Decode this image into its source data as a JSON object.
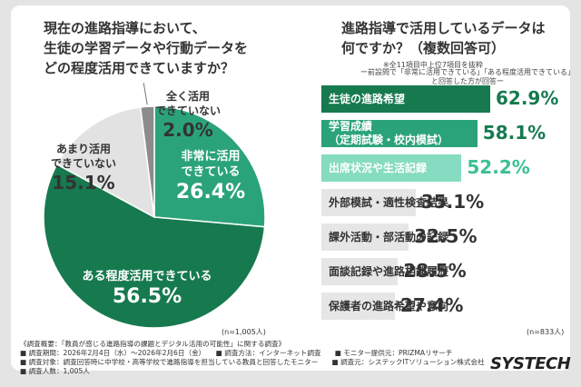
{
  "left": {
    "question_lines": [
      "現在の進路指導において、",
      "生徒の学習データや行動データを",
      "どの程度活用できていますか？"
    ],
    "n": "(n=1,005人)"
  },
  "right": {
    "question_lines": [
      "進路指導で活用しているデータは",
      "何ですか？（複数回答可）"
    ],
    "note1": "※全11項目中上位7項目を抜粋",
    "note2_lines": [
      "ー前設問で「非常に活用できている」「ある程度活用できている」",
      "と回答した方が回答ー"
    ],
    "n": "(n=833人)"
  },
  "chart_data": [
    {
      "type": "pie",
      "slices": [
        {
          "label_lines": [
            "非常に活用",
            "できている"
          ],
          "value": 26.4,
          "display": "26.4%",
          "color": "#2ba37a"
        },
        {
          "label_lines": [
            "ある程度活用できている"
          ],
          "value": 56.5,
          "display": "56.5%",
          "color": "#177a4f"
        },
        {
          "label_lines": [
            "あまり活用",
            "できていない"
          ],
          "value": 15.1,
          "display": "15.1%",
          "color": "#e2e2e2"
        },
        {
          "label_lines": [
            "全く活用",
            "できていない"
          ],
          "value": 2.0,
          "display": "2.0%",
          "color": "#8c8c8c"
        }
      ]
    },
    {
      "type": "bar",
      "orientation": "horizontal",
      "categories": [
        [
          "生徒の進路希望"
        ],
        [
          "学習成績",
          "（定期試験・校内模試）"
        ],
        [
          "出席状況や生活記録"
        ],
        [
          "外部模試・適性検査結果"
        ],
        [
          "課外活動・部活動の記録"
        ],
        [
          "面談記録や進路相談履歴"
        ],
        [
          "保護者の進路希望や意向"
        ]
      ],
      "values": [
        62.9,
        58.1,
        52.2,
        35.1,
        32.5,
        28.5,
        27.4
      ],
      "display": [
        "62.9%",
        "58.1%",
        "52.2%",
        "35.1%",
        "32.5%",
        "28.5%",
        "27.4%"
      ],
      "colors": [
        "#177a4f",
        "#2ba37a",
        "#86dcc0",
        "#e6e6e6",
        "#e6e6e6",
        "#e6e6e6",
        "#e6e6e6"
      ],
      "label_colors": [
        "#ffffff",
        "#ffffff",
        "#ffffff",
        "#333333",
        "#333333",
        "#333333",
        "#333333"
      ],
      "value_colors": [
        "#177a4f",
        "#177a4f",
        "#3dbf94",
        "#333333",
        "#333333",
        "#333333",
        "#333333"
      ]
    }
  ],
  "footer": {
    "lines": [
      "《調査概要：「教員が感じる進路指導の課題とデジタル活用の可能性」に関する調査》",
      "■ 調査期間：2026年2月4日（水）～2026年2月6日（金）　　■ 調査方法：インターネット調査　　■ モニター提供元：PRIZMAリサーチ",
      "■ 調査対象：調査回答時に中学校・高等学校で進路指導を担当している教員と回答したモニター　　■ 調査元：システックITソリューション株式会社",
      "■ 調査人数：1,005人"
    ],
    "logo": "SYSTECH"
  }
}
